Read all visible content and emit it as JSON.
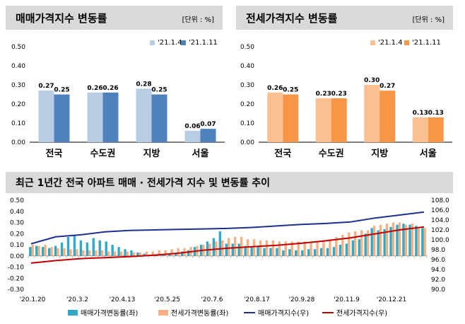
{
  "colors": {
    "header_bg": "#d9d9d9",
    "sale_prev": "#b8cce4",
    "sale_curr": "#4f81bd",
    "jeonse_prev": "#fac090",
    "jeonse_curr": "#f79646",
    "sale_bar": "#31a9c9",
    "jeonse_bar": "#f4b183",
    "sale_index_line": "#1f2f8f",
    "jeonse_index_line": "#c00000"
  },
  "panels": {
    "sale": {
      "title": "매매가격지수 변동률",
      "unit": "[단위 : %]"
    },
    "jeonse": {
      "title": "전세가격지수 변동률",
      "unit": "[단위 : %]"
    },
    "trend": {
      "title": "최근 1년간 전국 아파트 매매 · 전세가격 지수 및 변동률 추이"
    }
  },
  "chart_data": [
    {
      "type": "bar",
      "title": "매매가격지수 변동률",
      "unit": "[단위 : %]",
      "categories": [
        "전국",
        "수도권",
        "지방",
        "서울"
      ],
      "series": [
        {
          "name": "'21.1.4",
          "values": [
            0.27,
            0.26,
            0.28,
            0.06
          ]
        },
        {
          "name": "'21.1.11",
          "values": [
            0.25,
            0.26,
            0.25,
            0.07
          ]
        }
      ],
      "ylim": [
        0,
        0.5
      ],
      "yticks": [
        "0.00",
        "0.10",
        "0.20",
        "0.30",
        "0.40",
        "0.50"
      ]
    },
    {
      "type": "bar",
      "title": "전세가격지수 변동률",
      "unit": "[단위 : %]",
      "categories": [
        "전국",
        "수도권",
        "지방",
        "서울"
      ],
      "series": [
        {
          "name": "'21.1.4",
          "values": [
            0.26,
            0.23,
            0.3,
            0.13
          ]
        },
        {
          "name": "'21.1.11",
          "values": [
            0.25,
            0.23,
            0.27,
            0.13
          ]
        }
      ],
      "ylim": [
        0,
        0.5
      ],
      "yticks": [
        "0.00",
        "0.10",
        "0.20",
        "0.30",
        "0.40",
        "0.50"
      ]
    },
    {
      "type": "bar+line",
      "title": "최근 1년간 전국 아파트 매매 · 전세가격 지수 및 변동률 추이",
      "x_tick_labels": [
        "'20.1.20",
        "'20.3.2",
        "'20.4.13",
        "'20.5.25",
        "'20.7.6",
        "'20.8.17",
        "'20.9.28",
        "'20.11.9",
        "'20.12.21"
      ],
      "y_left_ticks": [
        "-0.30",
        "-0.20",
        "-0.10",
        "0.00",
        "0.10",
        "0.20",
        "0.30",
        "0.40",
        "0.50"
      ],
      "y_left_lim": [
        -0.3,
        0.5
      ],
      "y_right_ticks": [
        "90.0",
        "92.0",
        "94.0",
        "96.0",
        "98.0",
        "100.0",
        "102.0",
        "104.0",
        "106.0",
        "108.0"
      ],
      "y_right_lim": [
        90.0,
        108.0
      ],
      "series": [
        {
          "name": "매매가격변동률(좌)",
          "kind": "bar",
          "axis": "left",
          "values": [
            0.08,
            0.09,
            0.08,
            0.07,
            0.09,
            0.12,
            0.17,
            0.19,
            0.14,
            0.12,
            0.16,
            0.14,
            0.13,
            0.1,
            0.08,
            0.06,
            0.05,
            0.03,
            0.02,
            0.01,
            0.01,
            0.01,
            0.02,
            0.02,
            0.04,
            0.05,
            0.08,
            0.1,
            0.13,
            0.16,
            0.22,
            0.11,
            0.11,
            0.11,
            0.09,
            0.08,
            0.08,
            0.07,
            0.07,
            0.07,
            0.05,
            0.06,
            0.05,
            0.05,
            0.06,
            0.06,
            0.07,
            0.07,
            0.08,
            0.1,
            0.11,
            0.14,
            0.15,
            0.2,
            0.25,
            0.23,
            0.24,
            0.26,
            0.28,
            0.29,
            0.28,
            0.27,
            0.25
          ]
        },
        {
          "name": "전세가격변동률(좌)",
          "kind": "bar",
          "axis": "left",
          "values": [
            0.1,
            0.09,
            0.1,
            0.08,
            0.07,
            0.07,
            0.06,
            0.06,
            0.05,
            0.05,
            0.05,
            0.05,
            0.04,
            0.04,
            0.04,
            0.04,
            0.03,
            0.03,
            0.04,
            0.04,
            0.05,
            0.05,
            0.06,
            0.07,
            0.07,
            0.08,
            0.09,
            0.1,
            0.11,
            0.13,
            0.14,
            0.16,
            0.17,
            0.17,
            0.15,
            0.15,
            0.14,
            0.14,
            0.14,
            0.13,
            0.13,
            0.13,
            0.13,
            0.13,
            0.13,
            0.13,
            0.14,
            0.15,
            0.17,
            0.19,
            0.21,
            0.22,
            0.23,
            0.23,
            0.27,
            0.28,
            0.29,
            0.3,
            0.3,
            0.28,
            0.29,
            0.26,
            0.25
          ]
        },
        {
          "name": "매매가격지수(우)",
          "kind": "line",
          "axis": "right",
          "values": [
            99.2,
            100.6,
            101.0,
            101.6,
            101.9,
            102.0,
            102.1,
            102.2,
            102.3,
            102.5,
            102.8,
            103.1,
            103.3,
            103.6,
            104.4,
            105.0,
            105.6
          ]
        },
        {
          "name": "전세가격지수(우)",
          "kind": "line",
          "axis": "right",
          "values": [
            95.3,
            95.8,
            96.2,
            96.4,
            96.6,
            96.9,
            97.3,
            97.9,
            98.3,
            98.6,
            98.9,
            99.3,
            99.8,
            100.4,
            101.2,
            102.0,
            102.6
          ]
        }
      ]
    }
  ]
}
